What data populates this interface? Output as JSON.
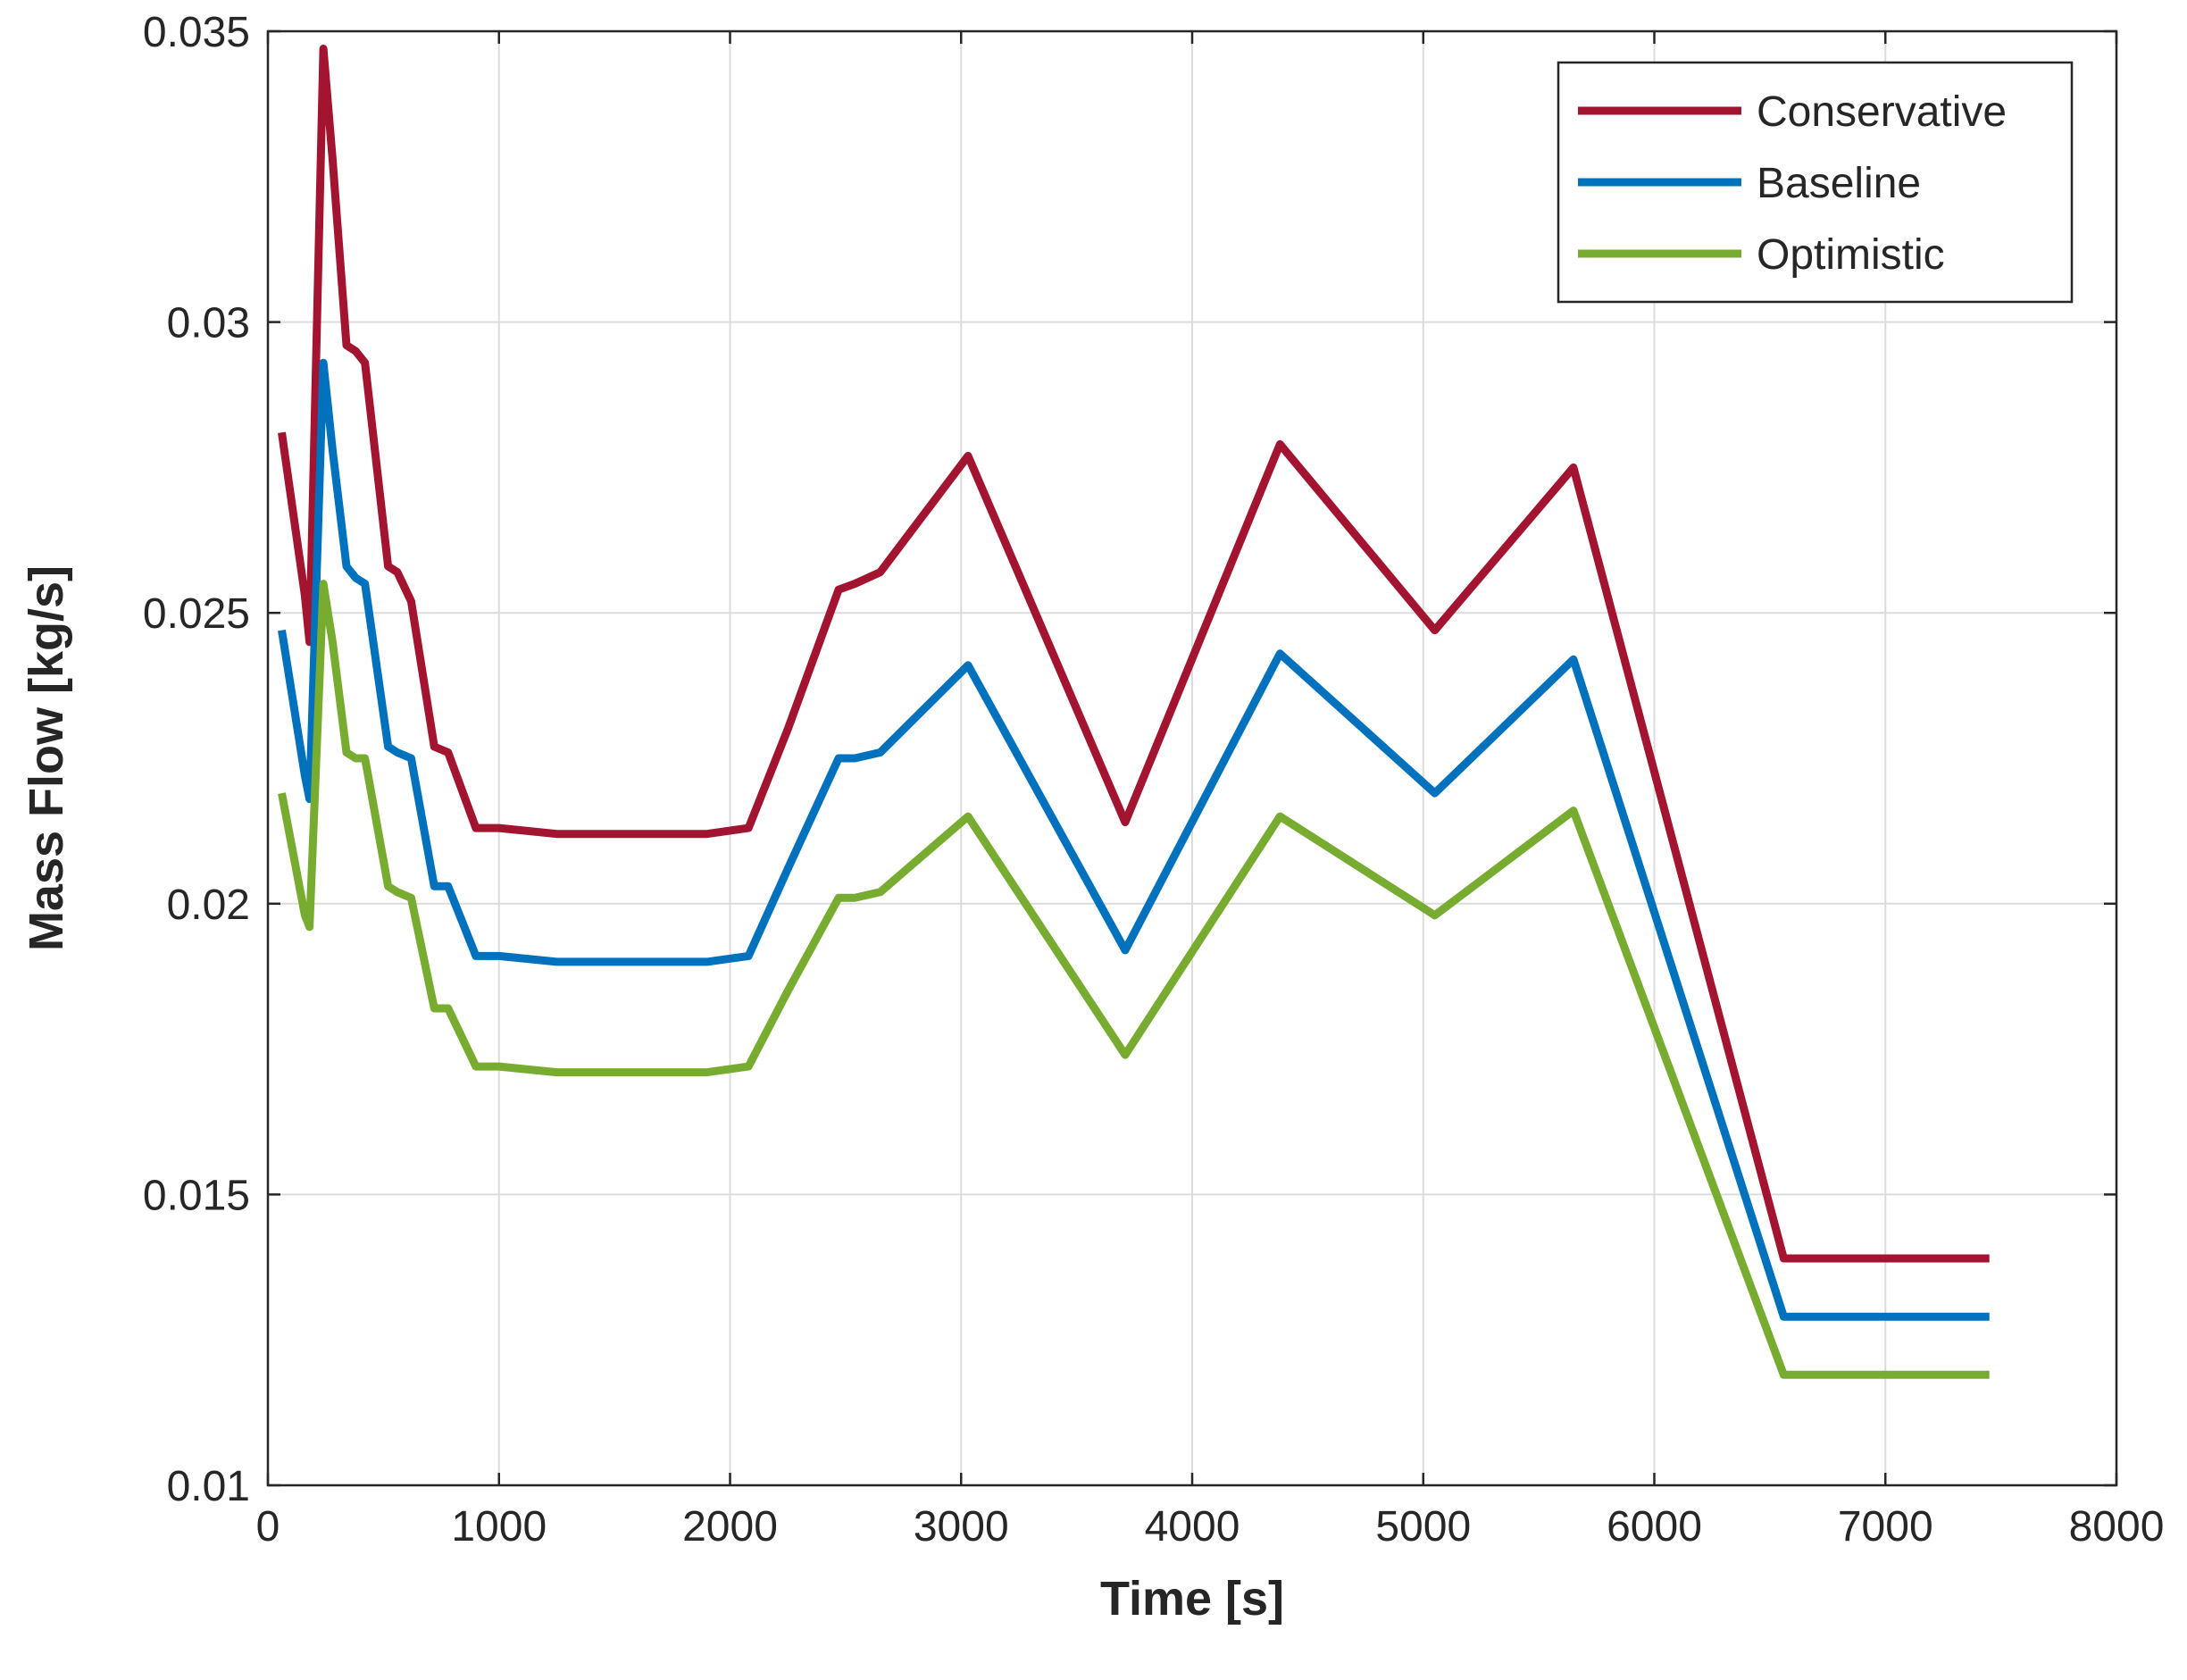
{
  "chart_data": {
    "type": "line",
    "xlabel": "Time [s]",
    "ylabel": "Mass Flow [kg/s]",
    "xlim": [
      0,
      8000
    ],
    "ylim": [
      0.01,
      0.035
    ],
    "xticks": [
      0,
      1000,
      2000,
      3000,
      4000,
      5000,
      6000,
      7000,
      8000
    ],
    "xtick_labels": [
      "0",
      "1000",
      "2000",
      "3000",
      "4000",
      "5000",
      "6000",
      "7000",
      "8000"
    ],
    "yticks": [
      0.01,
      0.015,
      0.02,
      0.025,
      0.03,
      0.035
    ],
    "ytick_labels": [
      "0.01",
      "0.015",
      "0.02",
      "0.025",
      "0.03",
      "0.035"
    ],
    "grid": true,
    "legend_position": "top-right",
    "series": [
      {
        "name": "Conservative",
        "color": "#A2142F",
        "x": [
          60,
          160,
          180,
          240,
          280,
          340,
          380,
          420,
          520,
          560,
          620,
          720,
          780,
          900,
          1000,
          1250,
          1500,
          1900,
          2080,
          2250,
          2470,
          2540,
          2650,
          3030,
          3710,
          4380,
          5050,
          5650,
          6560,
          7450
        ],
        "y": [
          0.0281,
          0.0253,
          0.0245,
          0.0347,
          0.0328,
          0.0296,
          0.0295,
          0.0293,
          0.0258,
          0.0257,
          0.0252,
          0.0227,
          0.0226,
          0.0213,
          0.0213,
          0.0212,
          0.0212,
          0.0212,
          0.0213,
          0.023,
          0.0254,
          0.0255,
          0.0257,
          0.0277,
          0.0214,
          0.0279,
          0.0247,
          0.0275,
          0.0139,
          0.0139
        ]
      },
      {
        "name": "Baseline",
        "color": "#0072BD",
        "x": [
          60,
          160,
          180,
          240,
          280,
          340,
          380,
          420,
          520,
          560,
          620,
          720,
          780,
          900,
          1000,
          1250,
          1500,
          1900,
          2080,
          2250,
          2470,
          2540,
          2650,
          3030,
          3710,
          4380,
          5050,
          5650,
          6560,
          7450
        ],
        "y": [
          0.0247,
          0.0222,
          0.0218,
          0.0293,
          0.0278,
          0.0258,
          0.0256,
          0.0255,
          0.0227,
          0.0226,
          0.0225,
          0.0203,
          0.0203,
          0.0191,
          0.0191,
          0.019,
          0.019,
          0.019,
          0.0191,
          0.0206,
          0.0225,
          0.0225,
          0.0226,
          0.0241,
          0.0192,
          0.0243,
          0.0219,
          0.0242,
          0.0129,
          0.0129
        ]
      },
      {
        "name": "Optimistic",
        "color": "#77AC30",
        "x": [
          60,
          160,
          180,
          240,
          280,
          340,
          380,
          420,
          520,
          560,
          620,
          720,
          780,
          900,
          1000,
          1250,
          1500,
          1900,
          2080,
          2250,
          2470,
          2540,
          2650,
          3030,
          3710,
          4380,
          5050,
          5650,
          6560,
          7450
        ],
        "y": [
          0.0219,
          0.0198,
          0.0196,
          0.0255,
          0.0245,
          0.0226,
          0.0225,
          0.0225,
          0.0203,
          0.0202,
          0.0201,
          0.0182,
          0.0182,
          0.0172,
          0.0172,
          0.0171,
          0.0171,
          0.0171,
          0.0172,
          0.0185,
          0.0201,
          0.0201,
          0.0202,
          0.0215,
          0.0174,
          0.0215,
          0.0198,
          0.0216,
          0.0119,
          0.0119
        ]
      }
    ]
  }
}
